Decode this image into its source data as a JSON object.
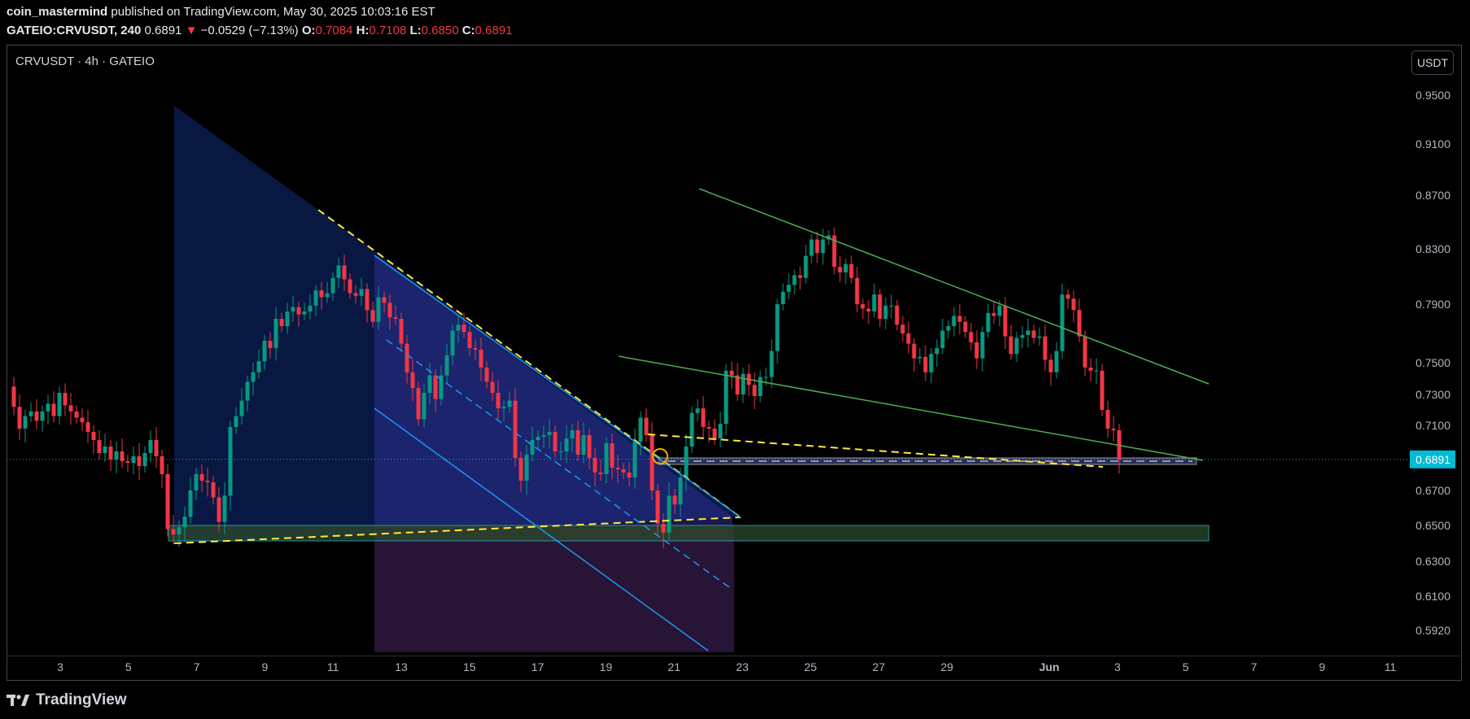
{
  "header": {
    "publisher": "coin_mastermind",
    "published_text": "published on TradingView.com, May 30, 2025 10:03:16 EST",
    "symbol": "GATEIO:CRVUSDT, 240",
    "last": "0.6891",
    "arrow": "▼",
    "change": "−0.0529 (−7.13%)",
    "o_label": "O:",
    "o_value": "0.7084",
    "h_label": "H:",
    "h_value": "0.7108",
    "l_label": "L:",
    "l_value": "0.6850",
    "c_label": "C:",
    "c_value": "0.6891"
  },
  "chart_title": "CRVUSDT · 4h · GATEIO",
  "currency_button": "USDT",
  "brand": "TradingView",
  "colors": {
    "up": "#089981",
    "down": "#f23645",
    "trendline": "#4caf50",
    "dashed": "#ffeb3b",
    "channel": "#2196f3",
    "price_tag": "#00bcd4",
    "support_zone": "#26c6da"
  },
  "chart_data": {
    "type": "candlestick",
    "title": "CRVUSDT · 4h · GATEIO",
    "last_price": 0.6891,
    "price_label": "0.6891",
    "y_ticks": [
      "0.9500",
      "0.9100",
      "0.8700",
      "0.8300",
      "0.7900",
      "0.7500",
      "0.7300",
      "0.7100",
      "0.6700",
      "0.6500",
      "0.6300",
      "0.6100",
      "0.5920"
    ],
    "y_tick_values": [
      0.95,
      0.91,
      0.87,
      0.83,
      0.79,
      0.75,
      0.73,
      0.71,
      0.67,
      0.65,
      0.63,
      0.61,
      0.592
    ],
    "x_ticks": [
      "3",
      "5",
      "7",
      "9",
      "11",
      "13",
      "15",
      "17",
      "19",
      "21",
      "23",
      "25",
      "27",
      "29",
      "Jun",
      "3",
      "5",
      "7",
      "9",
      "11"
    ],
    "x_tick_days": [
      3,
      5,
      7,
      9,
      11,
      13,
      15,
      17,
      19,
      21,
      23,
      25,
      27,
      29,
      32,
      34,
      36,
      38,
      40,
      42
    ],
    "closes": [
      0.735,
      0.722,
      0.708,
      0.716,
      0.719,
      0.713,
      0.719,
      0.724,
      0.716,
      0.731,
      0.723,
      0.719,
      0.715,
      0.712,
      0.706,
      0.701,
      0.693,
      0.697,
      0.689,
      0.694,
      0.688,
      0.687,
      0.691,
      0.685,
      0.693,
      0.701,
      0.691,
      0.68,
      0.648,
      0.645,
      0.649,
      0.655,
      0.67,
      0.68,
      0.676,
      0.675,
      0.666,
      0.652,
      0.667,
      0.709,
      0.716,
      0.726,
      0.738,
      0.744,
      0.751,
      0.765,
      0.76,
      0.78,
      0.775,
      0.785,
      0.788,
      0.783,
      0.785,
      0.789,
      0.8,
      0.795,
      0.798,
      0.809,
      0.818,
      0.808,
      0.798,
      0.796,
      0.801,
      0.786,
      0.778,
      0.795,
      0.791,
      0.781,
      0.78,
      0.763,
      0.744,
      0.734,
      0.714,
      0.731,
      0.742,
      0.727,
      0.742,
      0.755,
      0.772,
      0.776,
      0.771,
      0.76,
      0.759,
      0.747,
      0.738,
      0.731,
      0.721,
      0.722,
      0.726,
      0.69,
      0.676,
      0.692,
      0.701,
      0.703,
      0.704,
      0.706,
      0.694,
      0.694,
      0.702,
      0.707,
      0.692,
      0.704,
      0.69,
      0.681,
      0.68,
      0.699,
      0.684,
      0.683,
      0.681,
      0.678,
      0.7,
      0.715,
      0.704,
      0.67,
      0.651,
      0.646,
      0.667,
      0.662,
      0.678,
      0.697,
      0.718,
      0.721,
      0.709,
      0.708,
      0.702,
      0.711,
      0.745,
      0.742,
      0.73,
      0.743,
      0.736,
      0.729,
      0.741,
      0.741,
      0.758,
      0.79,
      0.799,
      0.804,
      0.811,
      0.809,
      0.825,
      0.837,
      0.827,
      0.837,
      0.84,
      0.817,
      0.813,
      0.819,
      0.809,
      0.79,
      0.787,
      0.785,
      0.797,
      0.78,
      0.789,
      0.789,
      0.776,
      0.77,
      0.763,
      0.753,
      0.754,
      0.744,
      0.756,
      0.76,
      0.772,
      0.775,
      0.782,
      0.778,
      0.771,
      0.764,
      0.753,
      0.771,
      0.784,
      0.782,
      0.789,
      0.768,
      0.756,
      0.767,
      0.769,
      0.772,
      0.767,
      0.768,
      0.752,
      0.744,
      0.758,
      0.797,
      0.794,
      0.786,
      0.768,
      0.747,
      0.745,
      0.745,
      0.72,
      0.708,
      0.707,
      0.689
    ],
    "annotations": [
      "descending triangle (shaded) with dashed yellow boundaries",
      "descending channel (blue lines) with projection box",
      "falling wedge (green trendlines)",
      "support zone 0.642–0.650",
      "horizontal level at 0.6891"
    ]
  }
}
